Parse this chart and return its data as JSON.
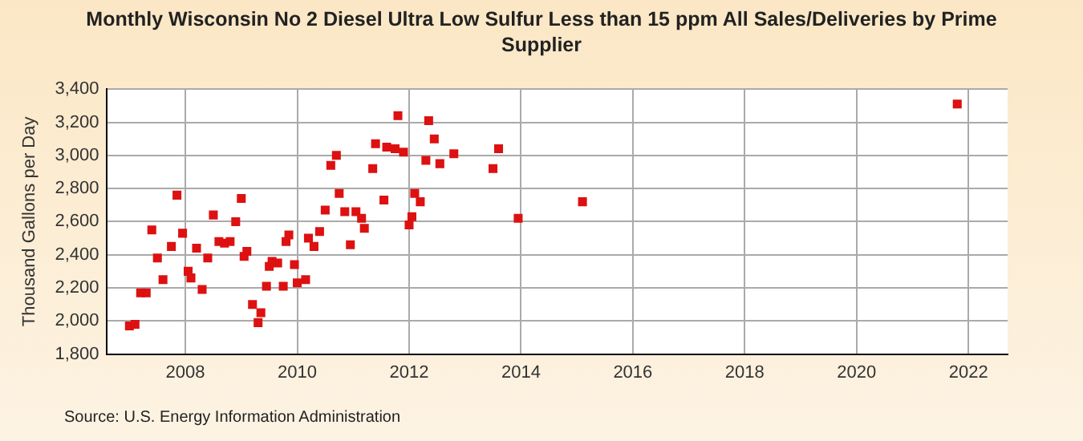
{
  "chart_data": {
    "type": "scatter",
    "title": "Monthly Wisconsin No 2 Diesel Ultra Low Sulfur Less than 15 ppm All Sales/Deliveries by Prime Supplier",
    "ylabel": "Thousand Gallons per Day",
    "annotations": [
      "Source: U.S. Energy Information Administration"
    ],
    "x": [
      2007.0,
      2007.1,
      2007.2,
      2007.3,
      2007.4,
      2007.5,
      2007.6,
      2007.75,
      2007.85,
      2007.95,
      2008.05,
      2008.1,
      2008.2,
      2008.3,
      2008.4,
      2008.5,
      2008.6,
      2008.7,
      2008.8,
      2008.9,
      2009.0,
      2009.05,
      2009.1,
      2009.2,
      2009.3,
      2009.35,
      2009.45,
      2009.5,
      2009.55,
      2009.65,
      2009.75,
      2009.8,
      2009.85,
      2009.95,
      2010.0,
      2010.15,
      2010.2,
      2010.3,
      2010.4,
      2010.5,
      2010.6,
      2010.7,
      2010.75,
      2010.85,
      2010.95,
      2011.05,
      2011.15,
      2011.2,
      2011.35,
      2011.4,
      2011.55,
      2011.6,
      2011.75,
      2011.8,
      2011.9,
      2012.0,
      2012.05,
      2012.1,
      2012.2,
      2012.3,
      2012.35,
      2012.45,
      2012.55,
      2012.8,
      2013.5,
      2013.6,
      2013.95,
      2015.1,
      2021.8
    ],
    "series": [
      {
        "color": "#dd1111",
        "values": [
          1970,
          1980,
          2170,
          2170,
          2550,
          2380,
          2250,
          2450,
          2760,
          2530,
          2300,
          2260,
          2440,
          2190,
          2380,
          2640,
          2480,
          2470,
          2480,
          2600,
          2740,
          2390,
          2420,
          2100,
          1990,
          2050,
          2210,
          2330,
          2360,
          2350,
          2210,
          2480,
          2520,
          2340,
          2230,
          2250,
          2500,
          2450,
          2540,
          2670,
          2940,
          3000,
          2770,
          2660,
          2460,
          2660,
          2620,
          2560,
          2920,
          3070,
          2730,
          3050,
          3040,
          3240,
          3020,
          2580,
          2630,
          2770,
          2720,
          2970,
          3210,
          3100,
          2950,
          3010,
          2920,
          3040,
          2620,
          2720,
          3310
        ]
      }
    ],
    "xlim": [
      2006.6,
      2022.7
    ],
    "xticks": [
      2008,
      2010,
      2012,
      2014,
      2016,
      2018,
      2020,
      2022
    ],
    "ylim": [
      1800,
      3400
    ],
    "yticks": [
      {
        "value": 1800,
        "label": "1,800"
      },
      {
        "value": 2000,
        "label": "2,000"
      },
      {
        "value": 2200,
        "label": "2,200"
      },
      {
        "value": 2400,
        "label": "2,400"
      },
      {
        "value": 2600,
        "label": "2,600"
      },
      {
        "value": 2800,
        "label": "2,800"
      },
      {
        "value": 3000,
        "label": "3,000"
      },
      {
        "value": 3200,
        "label": "3,200"
      },
      {
        "value": 3400,
        "label": "3,400"
      }
    ],
    "grid": true,
    "marker": "square",
    "legend": false
  }
}
